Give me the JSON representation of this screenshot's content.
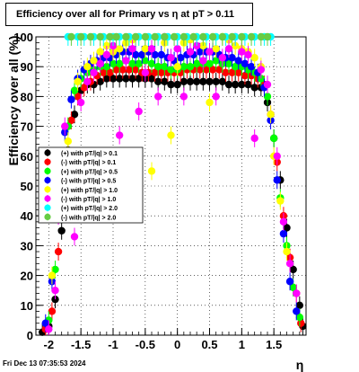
{
  "title": "Efficiency over all for Primary vs    η at pT > 0.11",
  "footer": "Fri Dec 13 07:35:53 2024",
  "chart_data": {
    "type": "scatter",
    "title": "Efficiency over all for Primary vs    η at pT > 0.11",
    "xlabel": "η",
    "ylabel": "Efficiency over all (%)",
    "xlim": [
      -2.2,
      2.0
    ],
    "ylim": [
      0,
      100
    ],
    "x_ticks": [
      "-2",
      "-1.5",
      "-1",
      "-0.5",
      "0",
      "0.5",
      "1",
      "1.5"
    ],
    "y_ticks": [
      "0",
      "10",
      "20",
      "30",
      "40",
      "50",
      "60",
      "70",
      "80",
      "90",
      "100"
    ],
    "grid": true,
    "legend_position": "middle-left",
    "series": [
      {
        "name": "(+) with pT/|q| > 0.1",
        "color": "#000000",
        "points": [
          [
            -2.1,
            1
          ],
          [
            -2.0,
            3
          ],
          [
            -1.9,
            12
          ],
          [
            -1.8,
            35
          ],
          [
            -1.7,
            62
          ],
          [
            -1.6,
            74
          ],
          [
            -1.5,
            82
          ],
          [
            -1.4,
            84
          ],
          [
            -1.3,
            84
          ],
          [
            -1.2,
            85
          ],
          [
            -1.1,
            86
          ],
          [
            -1.0,
            86
          ],
          [
            -0.9,
            86
          ],
          [
            -0.8,
            86
          ],
          [
            -0.7,
            86
          ],
          [
            -0.6,
            86
          ],
          [
            -0.5,
            86
          ],
          [
            -0.4,
            86
          ],
          [
            -0.3,
            85
          ],
          [
            -0.2,
            85
          ],
          [
            -0.1,
            84
          ],
          [
            0.0,
            84
          ],
          [
            0.1,
            85
          ],
          [
            0.2,
            85
          ],
          [
            0.3,
            85
          ],
          [
            0.4,
            85
          ],
          [
            0.5,
            85
          ],
          [
            0.6,
            85
          ],
          [
            0.7,
            85
          ],
          [
            0.8,
            84
          ],
          [
            0.9,
            84
          ],
          [
            1.0,
            84
          ],
          [
            1.1,
            84
          ],
          [
            1.2,
            83
          ],
          [
            1.3,
            83
          ],
          [
            1.4,
            78
          ],
          [
            1.5,
            66
          ],
          [
            1.6,
            52
          ],
          [
            1.7,
            36
          ],
          [
            1.8,
            22
          ],
          [
            1.9,
            10
          ],
          [
            1.95,
            3
          ]
        ]
      },
      {
        "name": "(-) with pT/|q| > 0.1",
        "color": "#ff0000",
        "points": [
          [
            -2.05,
            2
          ],
          [
            -1.95,
            8
          ],
          [
            -1.85,
            28
          ],
          [
            -1.75,
            56
          ],
          [
            -1.65,
            72
          ],
          [
            -1.55,
            80
          ],
          [
            -1.45,
            83
          ],
          [
            -1.35,
            85
          ],
          [
            -1.25,
            87
          ],
          [
            -1.15,
            88
          ],
          [
            -1.05,
            88
          ],
          [
            -0.95,
            89
          ],
          [
            -0.85,
            89
          ],
          [
            -0.75,
            89
          ],
          [
            -0.65,
            89
          ],
          [
            -0.55,
            88
          ],
          [
            -0.45,
            88
          ],
          [
            -0.35,
            88
          ],
          [
            -0.25,
            88
          ],
          [
            -0.15,
            88
          ],
          [
            -0.05,
            88
          ],
          [
            0.05,
            88
          ],
          [
            0.15,
            89
          ],
          [
            0.25,
            89
          ],
          [
            0.35,
            89
          ],
          [
            0.45,
            89
          ],
          [
            0.55,
            89
          ],
          [
            0.65,
            89
          ],
          [
            0.75,
            88
          ],
          [
            0.85,
            88
          ],
          [
            0.95,
            88
          ],
          [
            1.05,
            87
          ],
          [
            1.15,
            87
          ],
          [
            1.25,
            86
          ],
          [
            1.35,
            84
          ],
          [
            1.45,
            74
          ],
          [
            1.55,
            58
          ],
          [
            1.65,
            40
          ],
          [
            1.75,
            26
          ],
          [
            1.85,
            14
          ],
          [
            1.92,
            4
          ]
        ]
      },
      {
        "name": "(+) with pT/|q| > 0.5",
        "color": "#00ff00",
        "points": [
          [
            -2.0,
            5
          ],
          [
            -1.9,
            22
          ],
          [
            -1.8,
            50
          ],
          [
            -1.7,
            70
          ],
          [
            -1.6,
            82
          ],
          [
            -1.5,
            86
          ],
          [
            -1.4,
            88
          ],
          [
            -1.3,
            89
          ],
          [
            -1.2,
            90
          ],
          [
            -1.1,
            90
          ],
          [
            -1.0,
            91
          ],
          [
            -0.9,
            91
          ],
          [
            -0.8,
            92
          ],
          [
            -0.7,
            91
          ],
          [
            -0.6,
            91
          ],
          [
            -0.5,
            92
          ],
          [
            -0.4,
            91
          ],
          [
            -0.3,
            90
          ],
          [
            -0.2,
            90
          ],
          [
            -0.1,
            89
          ],
          [
            0.0,
            89
          ],
          [
            0.1,
            90
          ],
          [
            0.2,
            90
          ],
          [
            0.3,
            91
          ],
          [
            0.4,
            91
          ],
          [
            0.5,
            91
          ],
          [
            0.6,
            92
          ],
          [
            0.7,
            91
          ],
          [
            0.8,
            91
          ],
          [
            0.9,
            90
          ],
          [
            1.0,
            90
          ],
          [
            1.1,
            89
          ],
          [
            1.2,
            88
          ],
          [
            1.3,
            86
          ],
          [
            1.4,
            80
          ],
          [
            1.5,
            66
          ],
          [
            1.6,
            46
          ],
          [
            1.7,
            30
          ],
          [
            1.8,
            16
          ],
          [
            1.9,
            6
          ]
        ]
      },
      {
        "name": "(-) with pT/|q| > 0.5",
        "color": "#0000ff",
        "points": [
          [
            -2.05,
            4
          ],
          [
            -1.95,
            18
          ],
          [
            -1.85,
            44
          ],
          [
            -1.75,
            68
          ],
          [
            -1.65,
            79
          ],
          [
            -1.55,
            86
          ],
          [
            -1.45,
            89
          ],
          [
            -1.35,
            91
          ],
          [
            -1.25,
            92
          ],
          [
            -1.15,
            93
          ],
          [
            -1.05,
            93
          ],
          [
            -0.95,
            94
          ],
          [
            -0.85,
            95
          ],
          [
            -0.75,
            95
          ],
          [
            -0.65,
            94
          ],
          [
            -0.55,
            94
          ],
          [
            -0.45,
            95
          ],
          [
            -0.35,
            94
          ],
          [
            -0.25,
            94
          ],
          [
            -0.15,
            93
          ],
          [
            -0.05,
            92
          ],
          [
            0.05,
            93
          ],
          [
            0.15,
            94
          ],
          [
            0.25,
            94
          ],
          [
            0.35,
            95
          ],
          [
            0.45,
            95
          ],
          [
            0.55,
            95
          ],
          [
            0.65,
            94
          ],
          [
            0.75,
            93
          ],
          [
            0.85,
            93
          ],
          [
            0.95,
            92
          ],
          [
            1.05,
            91
          ],
          [
            1.15,
            90
          ],
          [
            1.25,
            88
          ],
          [
            1.35,
            83
          ],
          [
            1.45,
            72
          ],
          [
            1.55,
            52
          ],
          [
            1.65,
            34
          ],
          [
            1.75,
            18
          ],
          [
            1.85,
            8
          ]
        ]
      },
      {
        "name": "(+) with pT/|q| > 1.0",
        "color": "#ffff00",
        "points": [
          [
            -1.95,
            20
          ],
          [
            -1.8,
            45
          ],
          [
            -1.7,
            65
          ],
          [
            -1.55,
            85
          ],
          [
            -1.4,
            90
          ],
          [
            -1.3,
            92
          ],
          [
            -1.2,
            95
          ],
          [
            -1.1,
            97
          ],
          [
            -1.0,
            95
          ],
          [
            -0.9,
            96
          ],
          [
            -0.8,
            98
          ],
          [
            -0.7,
            99
          ],
          [
            -0.6,
            100
          ],
          [
            -0.5,
            96
          ],
          [
            -0.4,
            55
          ],
          [
            -0.3,
            100
          ],
          [
            -0.2,
            98
          ],
          [
            -0.1,
            67
          ],
          [
            0.0,
            90
          ],
          [
            0.1,
            98
          ],
          [
            0.2,
            99
          ],
          [
            0.3,
            100
          ],
          [
            0.4,
            97
          ],
          [
            0.5,
            78
          ],
          [
            0.6,
            96
          ],
          [
            0.7,
            100
          ],
          [
            0.8,
            99
          ],
          [
            0.9,
            97
          ],
          [
            1.0,
            96
          ],
          [
            1.1,
            95
          ],
          [
            1.2,
            93
          ],
          [
            1.3,
            90
          ],
          [
            1.45,
            74
          ],
          [
            1.5,
            60
          ],
          [
            1.6,
            45
          ],
          [
            1.7,
            28
          ]
        ]
      },
      {
        "name": "(-) with pT/|q| > 1.0",
        "color": "#ff00ff",
        "points": [
          [
            -2.0,
            2
          ],
          [
            -1.9,
            15
          ],
          [
            -1.85,
            40
          ],
          [
            -1.75,
            70
          ],
          [
            -1.6,
            33
          ],
          [
            -1.5,
            78
          ],
          [
            -1.4,
            85
          ],
          [
            -1.3,
            88
          ],
          [
            -1.2,
            91
          ],
          [
            -1.1,
            94
          ],
          [
            -1.0,
            97
          ],
          [
            -0.9,
            67
          ],
          [
            -0.8,
            92
          ],
          [
            -0.7,
            96
          ],
          [
            -0.6,
            75
          ],
          [
            -0.5,
            88
          ],
          [
            -0.4,
            96
          ],
          [
            -0.3,
            80
          ],
          [
            -0.2,
            100
          ],
          [
            -0.1,
            93
          ],
          [
            0.0,
            96
          ],
          [
            0.1,
            80
          ],
          [
            0.2,
            95
          ],
          [
            0.3,
            97
          ],
          [
            0.4,
            92
          ],
          [
            0.5,
            95
          ],
          [
            0.6,
            80
          ],
          [
            0.7,
            93
          ],
          [
            0.8,
            96
          ],
          [
            0.9,
            100
          ],
          [
            1.0,
            95
          ],
          [
            1.1,
            94
          ],
          [
            1.2,
            66
          ],
          [
            1.3,
            89
          ],
          [
            1.4,
            84
          ],
          [
            1.55,
            60
          ],
          [
            1.65,
            38
          ],
          [
            1.75,
            24
          ],
          [
            1.85,
            14
          ]
        ]
      },
      {
        "name": "(+) with pT/|q| > 2.0",
        "color": "#00ffff",
        "points": [
          [
            -1.7,
            100
          ],
          [
            -1.55,
            100
          ],
          [
            -1.45,
            100
          ],
          [
            -1.3,
            100
          ],
          [
            -1.15,
            100
          ],
          [
            -1.0,
            100
          ],
          [
            -0.9,
            100
          ],
          [
            -0.75,
            100
          ],
          [
            -0.6,
            100
          ],
          [
            -0.45,
            100
          ],
          [
            -0.3,
            100
          ],
          [
            -0.15,
            100
          ],
          [
            0.0,
            100
          ],
          [
            0.15,
            100
          ],
          [
            0.3,
            100
          ],
          [
            0.45,
            100
          ],
          [
            0.6,
            100
          ],
          [
            0.75,
            100
          ],
          [
            0.9,
            100
          ],
          [
            1.05,
            100
          ],
          [
            1.2,
            100
          ],
          [
            1.35,
            100
          ],
          [
            1.45,
            100
          ]
        ]
      },
      {
        "name": "(-) with pT/|q| > 2.0",
        "color": "#66cc44",
        "points": [
          [
            -1.65,
            100
          ],
          [
            -1.5,
            100
          ],
          [
            -1.35,
            100
          ],
          [
            -1.2,
            100
          ],
          [
            -1.05,
            100
          ],
          [
            -0.95,
            100
          ],
          [
            -0.8,
            100
          ],
          [
            -0.65,
            100
          ],
          [
            -0.5,
            100
          ],
          [
            -0.35,
            100
          ],
          [
            -0.2,
            100
          ],
          [
            -0.05,
            100
          ],
          [
            0.1,
            100
          ],
          [
            0.25,
            100
          ],
          [
            0.4,
            100
          ],
          [
            0.55,
            100
          ],
          [
            0.7,
            100
          ],
          [
            0.85,
            100
          ],
          [
            1.0,
            100
          ],
          [
            1.15,
            100
          ],
          [
            1.3,
            100
          ],
          [
            1.4,
            100
          ]
        ]
      }
    ]
  }
}
